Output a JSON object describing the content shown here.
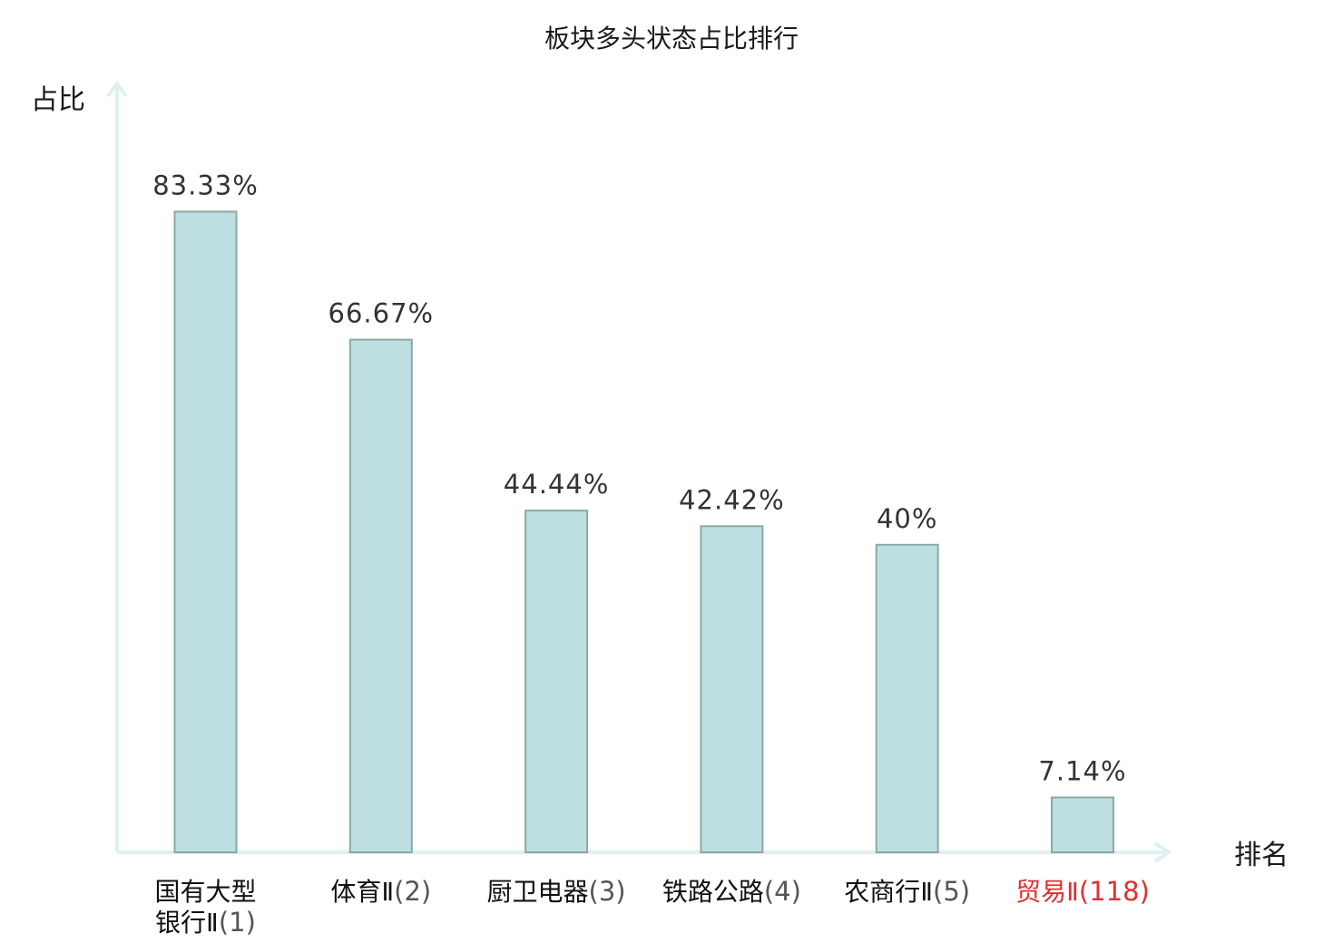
{
  "chart_data": {
    "type": "bar",
    "title": "板块多头状态占比排行",
    "ylabel": "占比",
    "xlabel": "排名",
    "ylim": [
      0,
      100
    ],
    "grid": false,
    "categories": [
      {
        "name": "国有大型银行Ⅱ",
        "rank": "(1)",
        "value": 83.33,
        "label": "83.33%",
        "highlight": false
      },
      {
        "name": "体育Ⅱ",
        "rank": "(2)",
        "value": 66.67,
        "label": "66.67%",
        "highlight": false
      },
      {
        "name": "厨卫电器",
        "rank": "(3)",
        "value": 44.44,
        "label": "44.44%",
        "highlight": false
      },
      {
        "name": "铁路公路",
        "rank": "(4)",
        "value": 42.42,
        "label": "42.42%",
        "highlight": false
      },
      {
        "name": "农商行Ⅱ",
        "rank": "(5)",
        "value": 40,
        "label": "40%",
        "highlight": false
      },
      {
        "name": "贸易Ⅱ",
        "rank": "(118)",
        "value": 7.14,
        "label": "7.14%",
        "highlight": true
      }
    ],
    "colors": {
      "bar_fill": "#bddfe2",
      "bar_stroke": "#8aa8aa",
      "axis": "#dff1ef",
      "highlight": "#e03030"
    }
  }
}
